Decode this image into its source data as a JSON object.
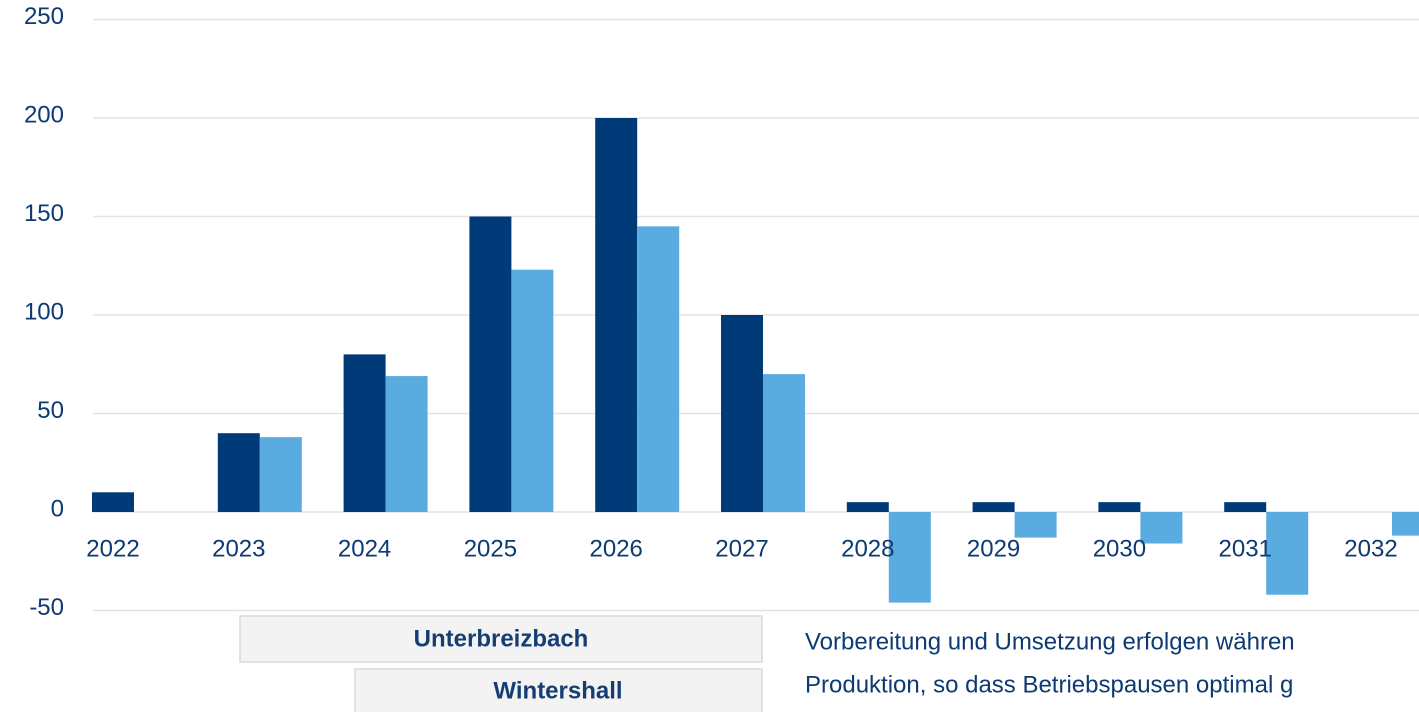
{
  "chart_data": {
    "type": "bar",
    "categories": [
      "2022",
      "2023",
      "2024",
      "2025",
      "2026",
      "2027",
      "2028",
      "2029",
      "2030",
      "2031",
      "2032"
    ],
    "series": [
      {
        "color": "#003a78",
        "values": [
          10,
          40,
          80,
          150,
          200,
          100,
          5,
          5,
          5,
          5,
          null
        ]
      },
      {
        "color": "#5aace0",
        "values": [
          null,
          38,
          69,
          123,
          145,
          70,
          -46,
          -13,
          -16,
          -42,
          -12
        ]
      }
    ],
    "ylim": [
      -50,
      250
    ],
    "yticks": [
      -50,
      0,
      50,
      100,
      150,
      200,
      250
    ],
    "grid": true,
    "labels": [
      "Unterbreizbach",
      "Wintershall"
    ],
    "note": [
      "Vorbereitung und Umsetzung erfolgen währen",
      "Produktion, so dass Betriebspausen optimal g"
    ]
  }
}
